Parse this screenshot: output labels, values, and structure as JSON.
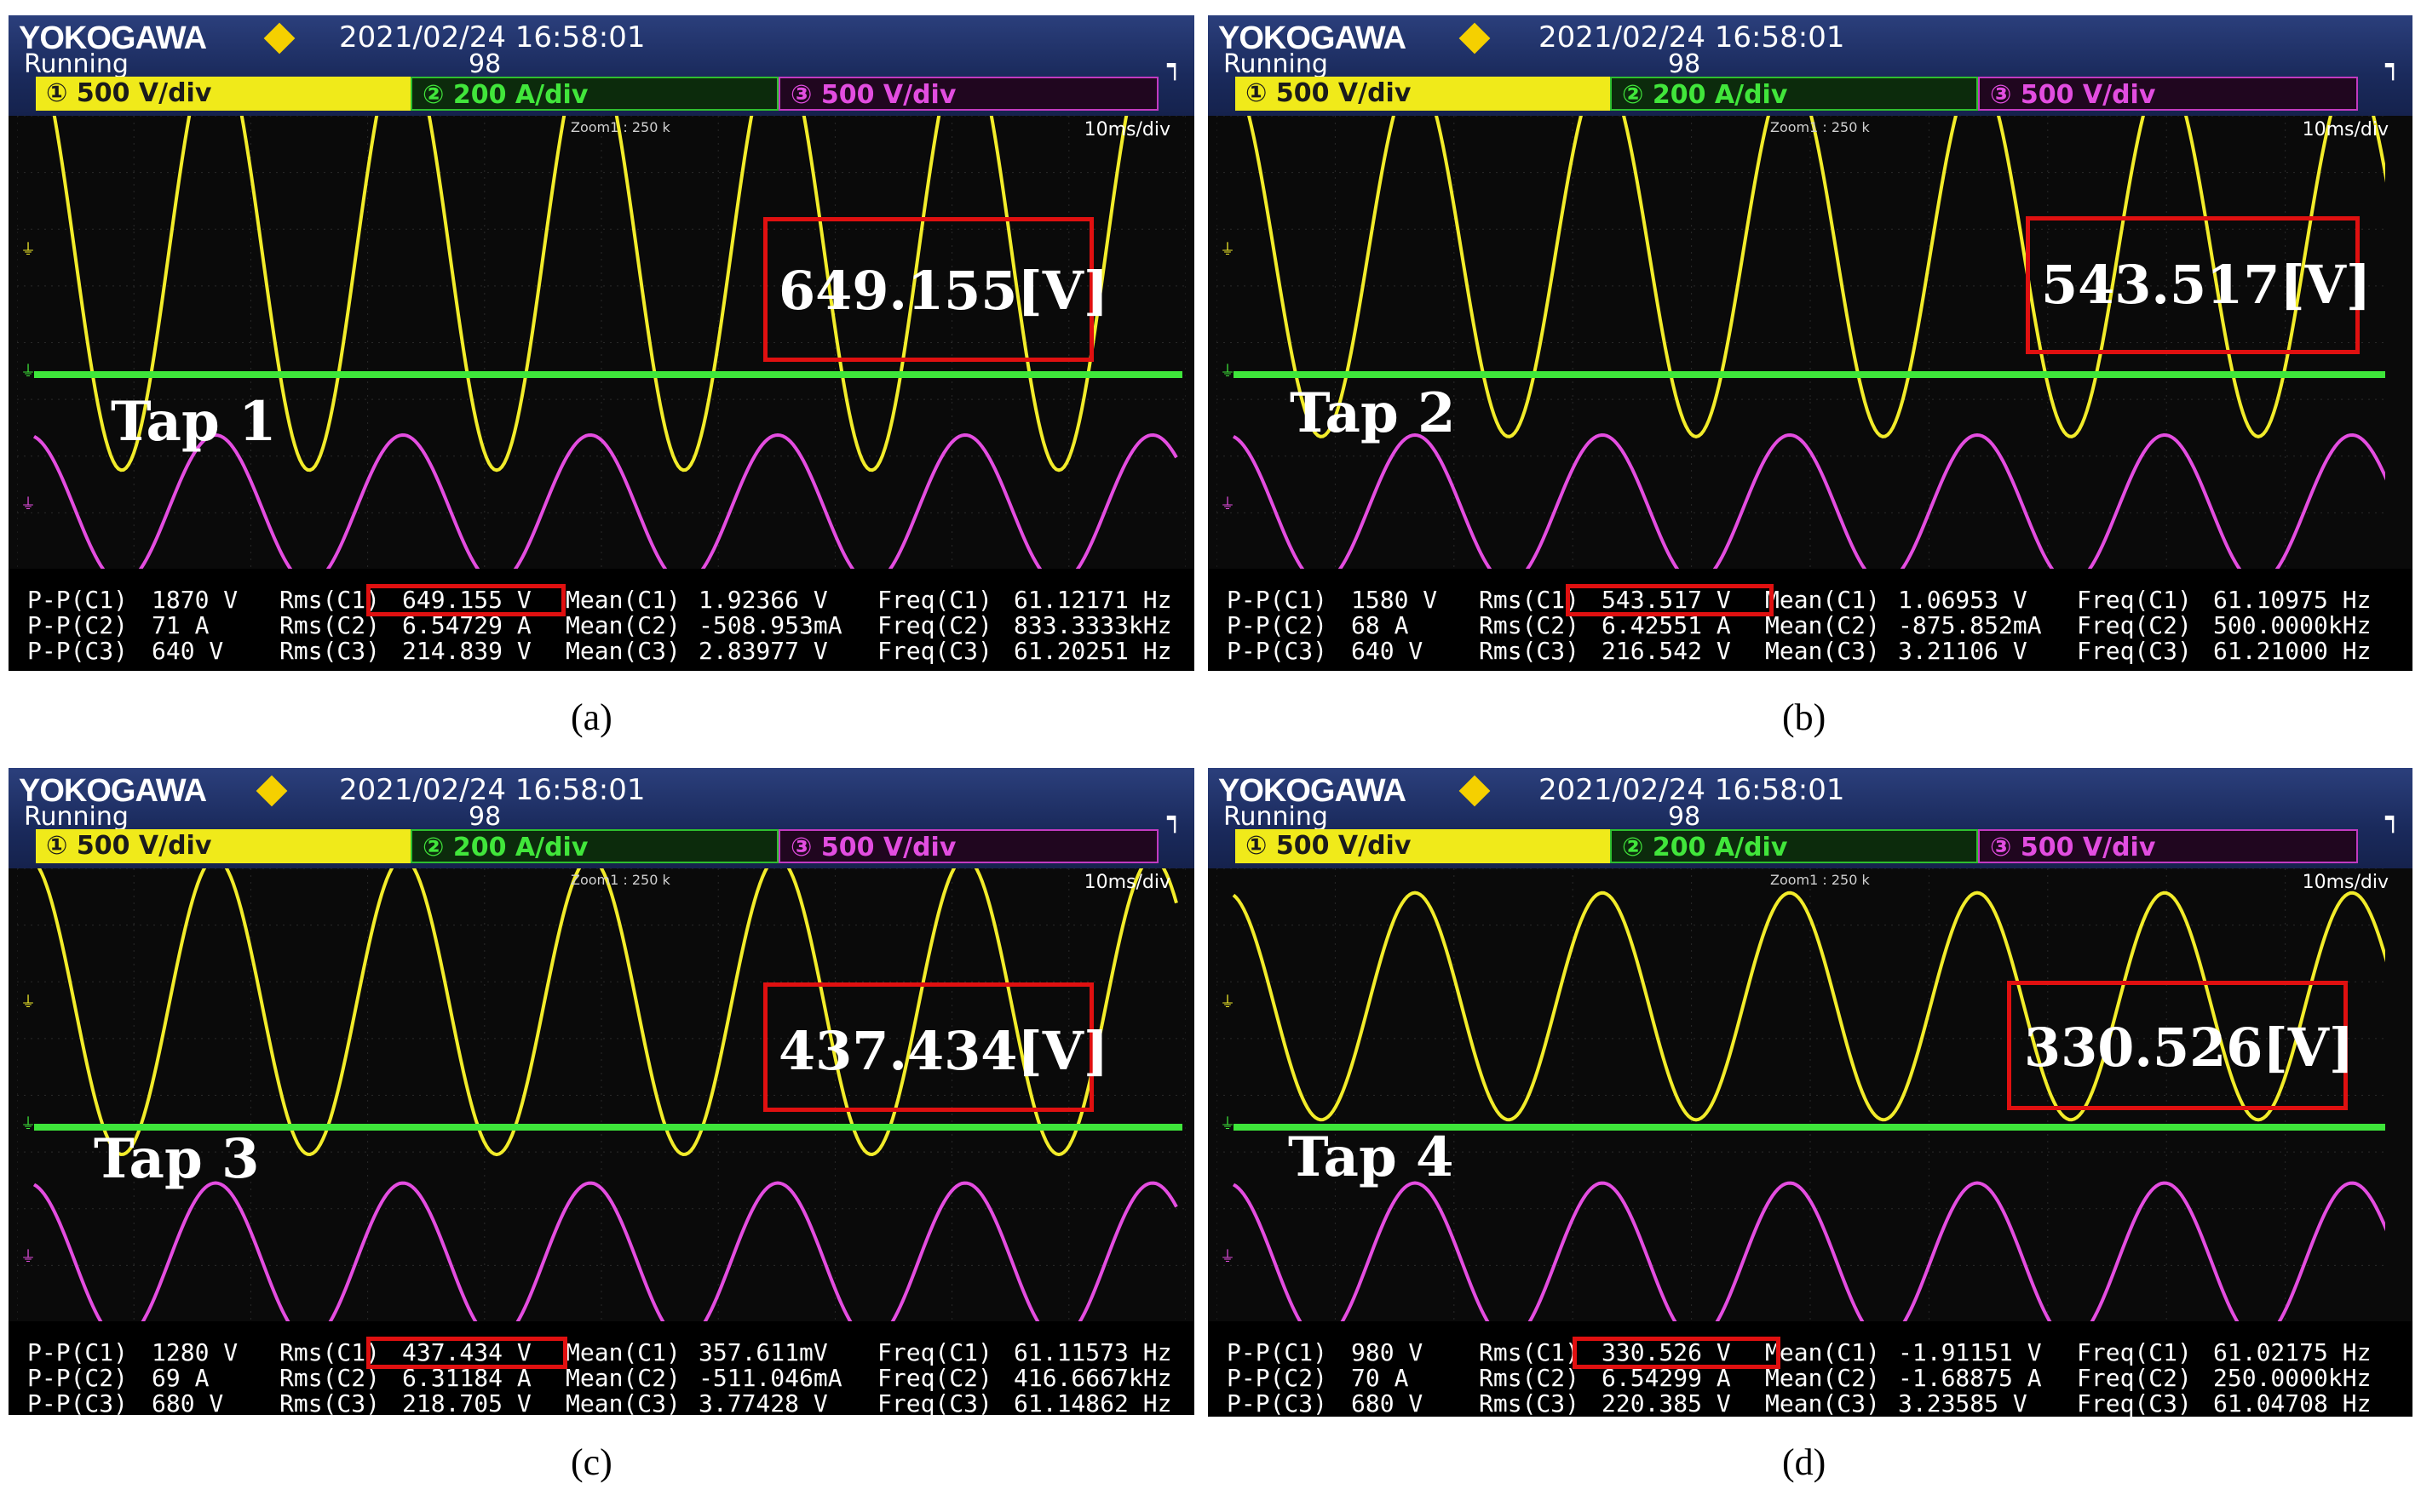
{
  "brand": "YOKOGAWA",
  "timestamp": "2021/02/24  16:58:01",
  "status": "Running",
  "acq_count": "98",
  "corner_icon": "trigger-icon",
  "channels": [
    "① 500 V/div",
    "② 200 A/div",
    "③ 500 V/div"
  ],
  "zoom_label": "Zoom1 : 250 k",
  "time_div": "10ms/div",
  "row_labels": [
    "P-P(C1)",
    "P-P(C2)",
    "P-P(C3)"
  ],
  "rms_labels": [
    "Rms(C1)",
    "Rms(C2)",
    "Rms(C3)"
  ],
  "mean_labels": [
    "Mean(C1)",
    "Mean(C2)",
    "Mean(C3)"
  ],
  "freq_labels": [
    "Freq(C1)",
    "Freq(C2)",
    "Freq(C3)"
  ],
  "colors": {
    "ch1": "#f2ec2a",
    "ch2": "#3ee63a",
    "ch3": "#e44de0",
    "highlight": "#e01010"
  },
  "panels": [
    {
      "caption": "(a)",
      "tap": "Tap 1",
      "callout": "649.155[V]",
      "pp": [
        "1870 V",
        "71 A",
        "640 V"
      ],
      "rms": [
        "649.155 V",
        "6.54729 A",
        "214.839 V"
      ],
      "mean": [
        "1.92366 V",
        "-508.953mA",
        "2.83977 V"
      ],
      "freq": [
        "61.12171 Hz",
        "833.3333kHz",
        "61.20251 Hz"
      ],
      "ch1_amplitude_v": 935,
      "ch3_amplitude_v": 320
    },
    {
      "caption": "(b)",
      "tap": "Tap 2",
      "callout": "543.517[V]",
      "pp": [
        "1580 V",
        "68 A",
        "640 V"
      ],
      "rms": [
        "543.517 V",
        "6.42551 A",
        "216.542 V"
      ],
      "mean": [
        "1.06953 V",
        "-875.852mA",
        "3.21106 V"
      ],
      "freq": [
        "61.10975 Hz",
        "500.0000kHz",
        "61.21000 Hz"
      ],
      "ch1_amplitude_v": 790,
      "ch3_amplitude_v": 320
    },
    {
      "caption": "(c)",
      "tap": "Tap 3",
      "callout": "437.434[V]",
      "pp": [
        "1280 V",
        "69 A",
        "680 V"
      ],
      "rms": [
        "437.434 V",
        "6.31184 A",
        "218.705 V"
      ],
      "mean": [
        "357.611mV",
        "-511.046mA",
        "3.77428 V"
      ],
      "freq": [
        "61.11573 Hz",
        "416.6667kHz",
        "61.14862 Hz"
      ],
      "ch1_amplitude_v": 640,
      "ch3_amplitude_v": 340
    },
    {
      "caption": "(d)",
      "tap": "Tap 4",
      "callout": "330.526[V]",
      "pp": [
        "980 V",
        "70 A",
        "680 V"
      ],
      "rms": [
        "330.526 V",
        "6.54299 A",
        "220.385 V"
      ],
      "mean": [
        "-1.91151 V",
        "-1.68875 A",
        "3.23585 V"
      ],
      "freq": [
        "61.02175 Hz",
        "250.0000kHz",
        "61.04708 Hz"
      ],
      "ch1_amplitude_v": 490,
      "ch3_amplitude_v": 340
    }
  ]
}
